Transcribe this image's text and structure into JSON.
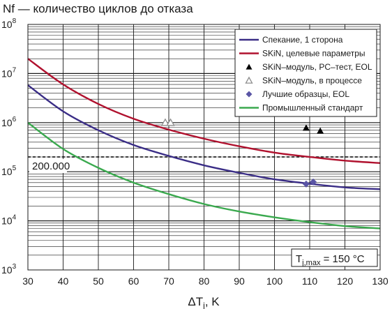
{
  "chart_data": {
    "type": "line",
    "title": "Nf — количество циклов до отказа",
    "xlabel_main": "ΔT",
    "xlabel_sub": "j",
    "xlabel_unit": ", K",
    "xlim": [
      30,
      130
    ],
    "ylim": [
      1000,
      100000000
    ],
    "y_scale": "log",
    "grid": true,
    "x_ticks": [
      "30",
      "40",
      "50",
      "60",
      "70",
      "80",
      "90",
      "100",
      "110",
      "120",
      "130"
    ],
    "y_ticks": [
      {
        "base": "10",
        "exp": "3"
      },
      {
        "base": "10",
        "exp": "4"
      },
      {
        "base": "10",
        "exp": "5"
      },
      {
        "base": "10",
        "exp": "6"
      },
      {
        "base": "10",
        "exp": "7"
      },
      {
        "base": "10",
        "exp": "8"
      }
    ],
    "legend_position": "top-right",
    "reference_line": {
      "y": 200000,
      "label": "200.000"
    },
    "annotation": {
      "main": "T",
      "sub": "j,max",
      "rest": " = 150 °C"
    },
    "series": [
      {
        "name": "Спекание, 1 сторона",
        "kind": "line",
        "color": "#3a2d86",
        "points": [
          [
            30,
            5800000
          ],
          [
            40,
            1700000
          ],
          [
            50,
            700000
          ],
          [
            60,
            350000
          ],
          [
            70,
            210000
          ],
          [
            80,
            135000
          ],
          [
            90,
            95000
          ],
          [
            100,
            70000
          ],
          [
            110,
            57000
          ],
          [
            120,
            48000
          ],
          [
            130,
            44000
          ]
        ]
      },
      {
        "name": "SKiN, целевые параметры",
        "kind": "line",
        "color": "#b0112e",
        "points": [
          [
            30,
            20000000
          ],
          [
            40,
            6000000
          ],
          [
            50,
            2400000
          ],
          [
            60,
            1200000
          ],
          [
            70,
            720000
          ],
          [
            80,
            470000
          ],
          [
            90,
            330000
          ],
          [
            100,
            245000
          ],
          [
            110,
            200000
          ],
          [
            120,
            168000
          ],
          [
            130,
            150000
          ]
        ]
      },
      {
        "name": "SKiN–модуль, PC–тест, EOL",
        "kind": "marker",
        "marker": "triangle-filled",
        "color": "#000000",
        "points": [
          [
            109,
            780000
          ],
          [
            113,
            680000
          ]
        ]
      },
      {
        "name": "SKiN–модуль, в процессе",
        "kind": "marker",
        "marker": "triangle-open",
        "color": "#8c8c8c",
        "points": [
          [
            69,
            1000000
          ],
          [
            70.5,
            1000000
          ]
        ]
      },
      {
        "name": "Лучшие образцы, EOL",
        "kind": "marker",
        "marker": "diamond",
        "color": "#5a55a5",
        "points": [
          [
            109,
            56000
          ],
          [
            111,
            62000
          ]
        ]
      },
      {
        "name": "Промышленный стандарт",
        "kind": "line",
        "color": "#3aa94e",
        "points": [
          [
            30,
            1000000
          ],
          [
            40,
            290000
          ],
          [
            50,
            120000
          ],
          [
            60,
            60000
          ],
          [
            70,
            35000
          ],
          [
            80,
            22000
          ],
          [
            90,
            15500
          ],
          [
            100,
            11800
          ],
          [
            110,
            9400
          ],
          [
            120,
            7800
          ],
          [
            130,
            7000
          ]
        ]
      }
    ]
  }
}
